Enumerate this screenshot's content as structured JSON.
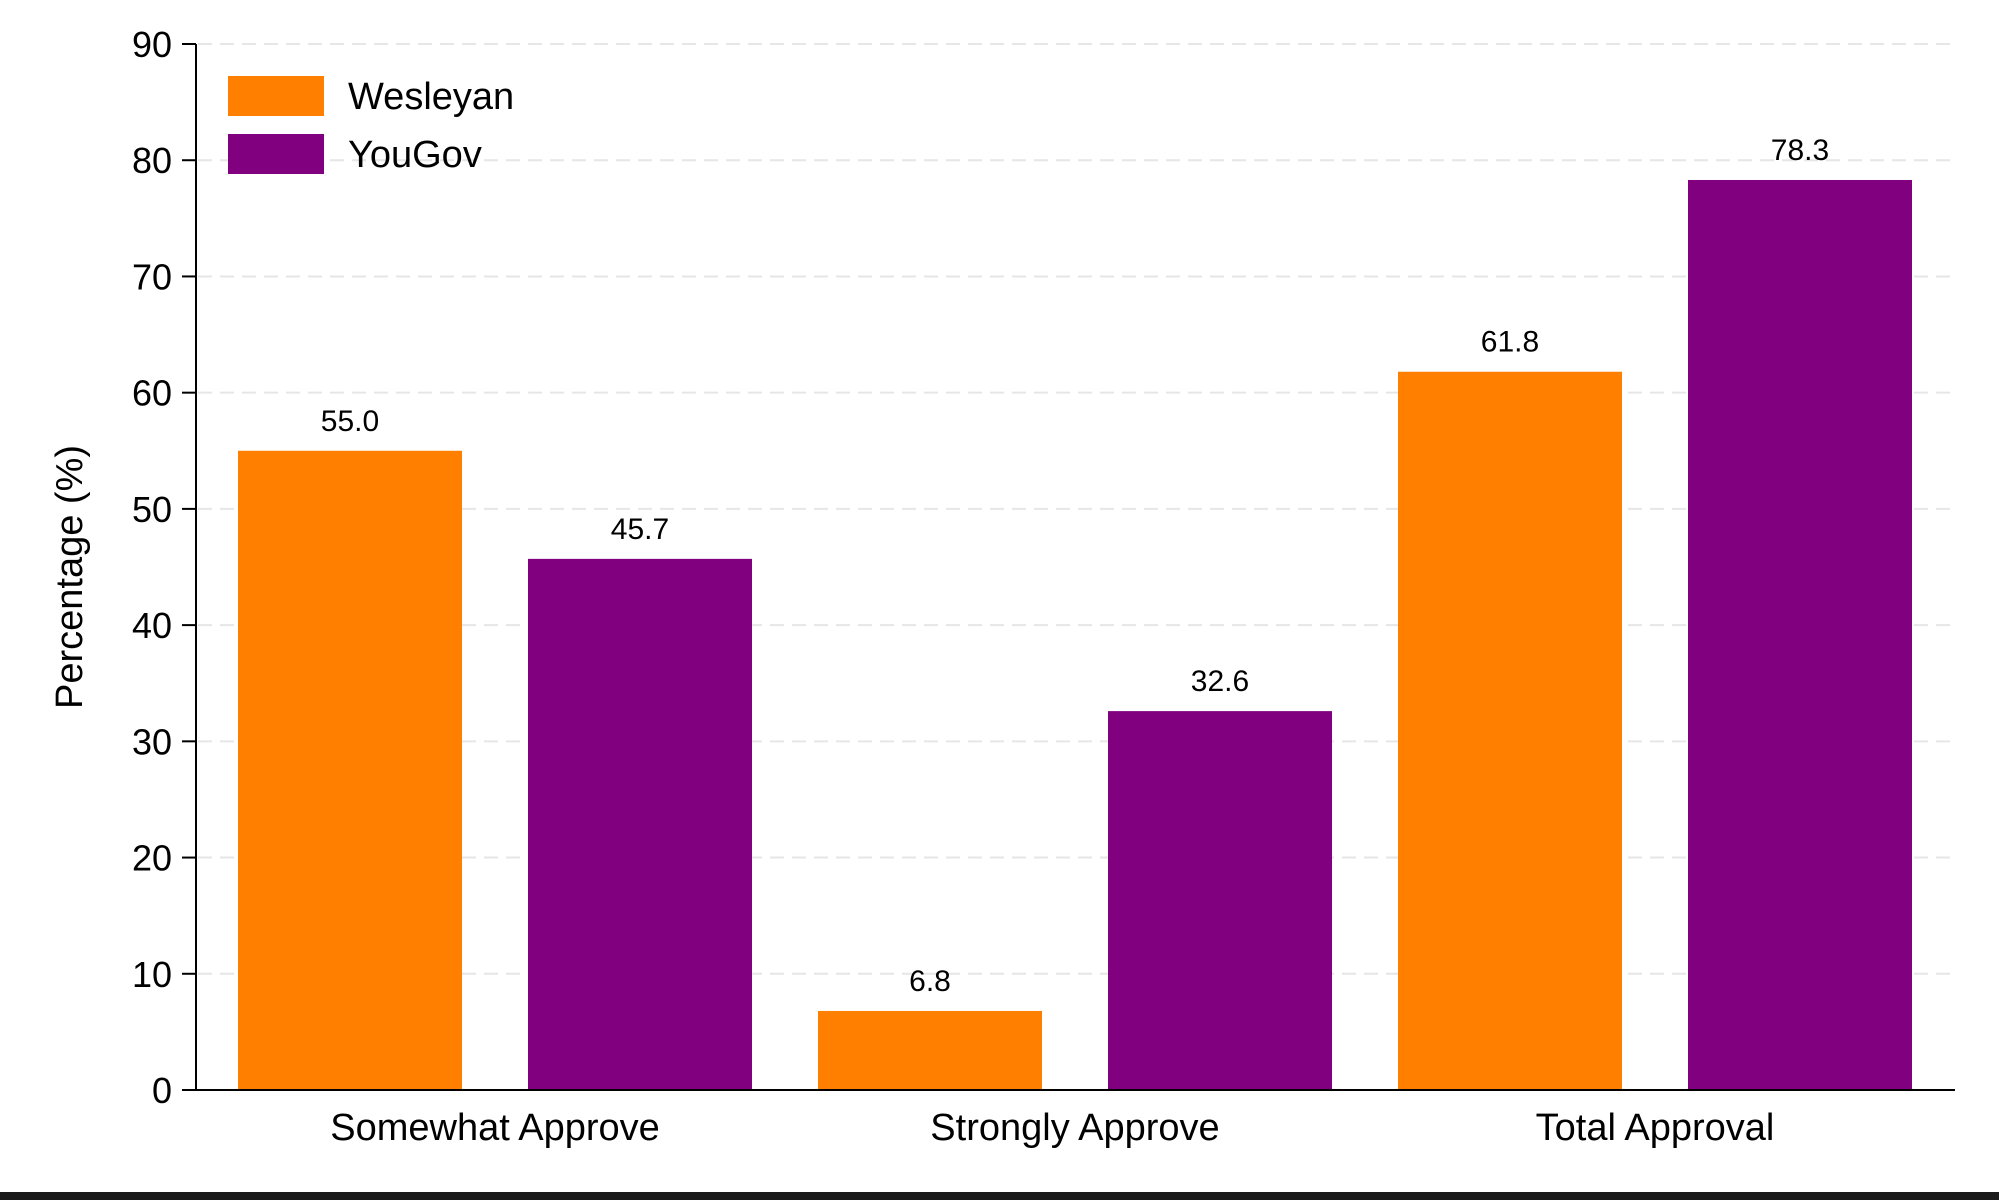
{
  "chart_data": {
    "type": "bar",
    "categories": [
      "Somewhat Approve",
      "Strongly Approve",
      "Total Approval"
    ],
    "series": [
      {
        "name": "Wesleyan",
        "values": [
          55.0,
          6.8,
          61.8
        ],
        "color": "#FF8000"
      },
      {
        "name": "YouGov",
        "values": [
          45.7,
          32.6,
          78.3
        ],
        "color": "#800080"
      }
    ],
    "ylabel": "Percentage (%)",
    "xlabel": "",
    "ylim": [
      0,
      90
    ],
    "yticks": [
      0,
      10,
      20,
      30,
      40,
      50,
      60,
      70,
      80,
      90
    ],
    "grid": "horizontal dashed",
    "legend_position": "top-left",
    "value_format": "one decimal"
  }
}
